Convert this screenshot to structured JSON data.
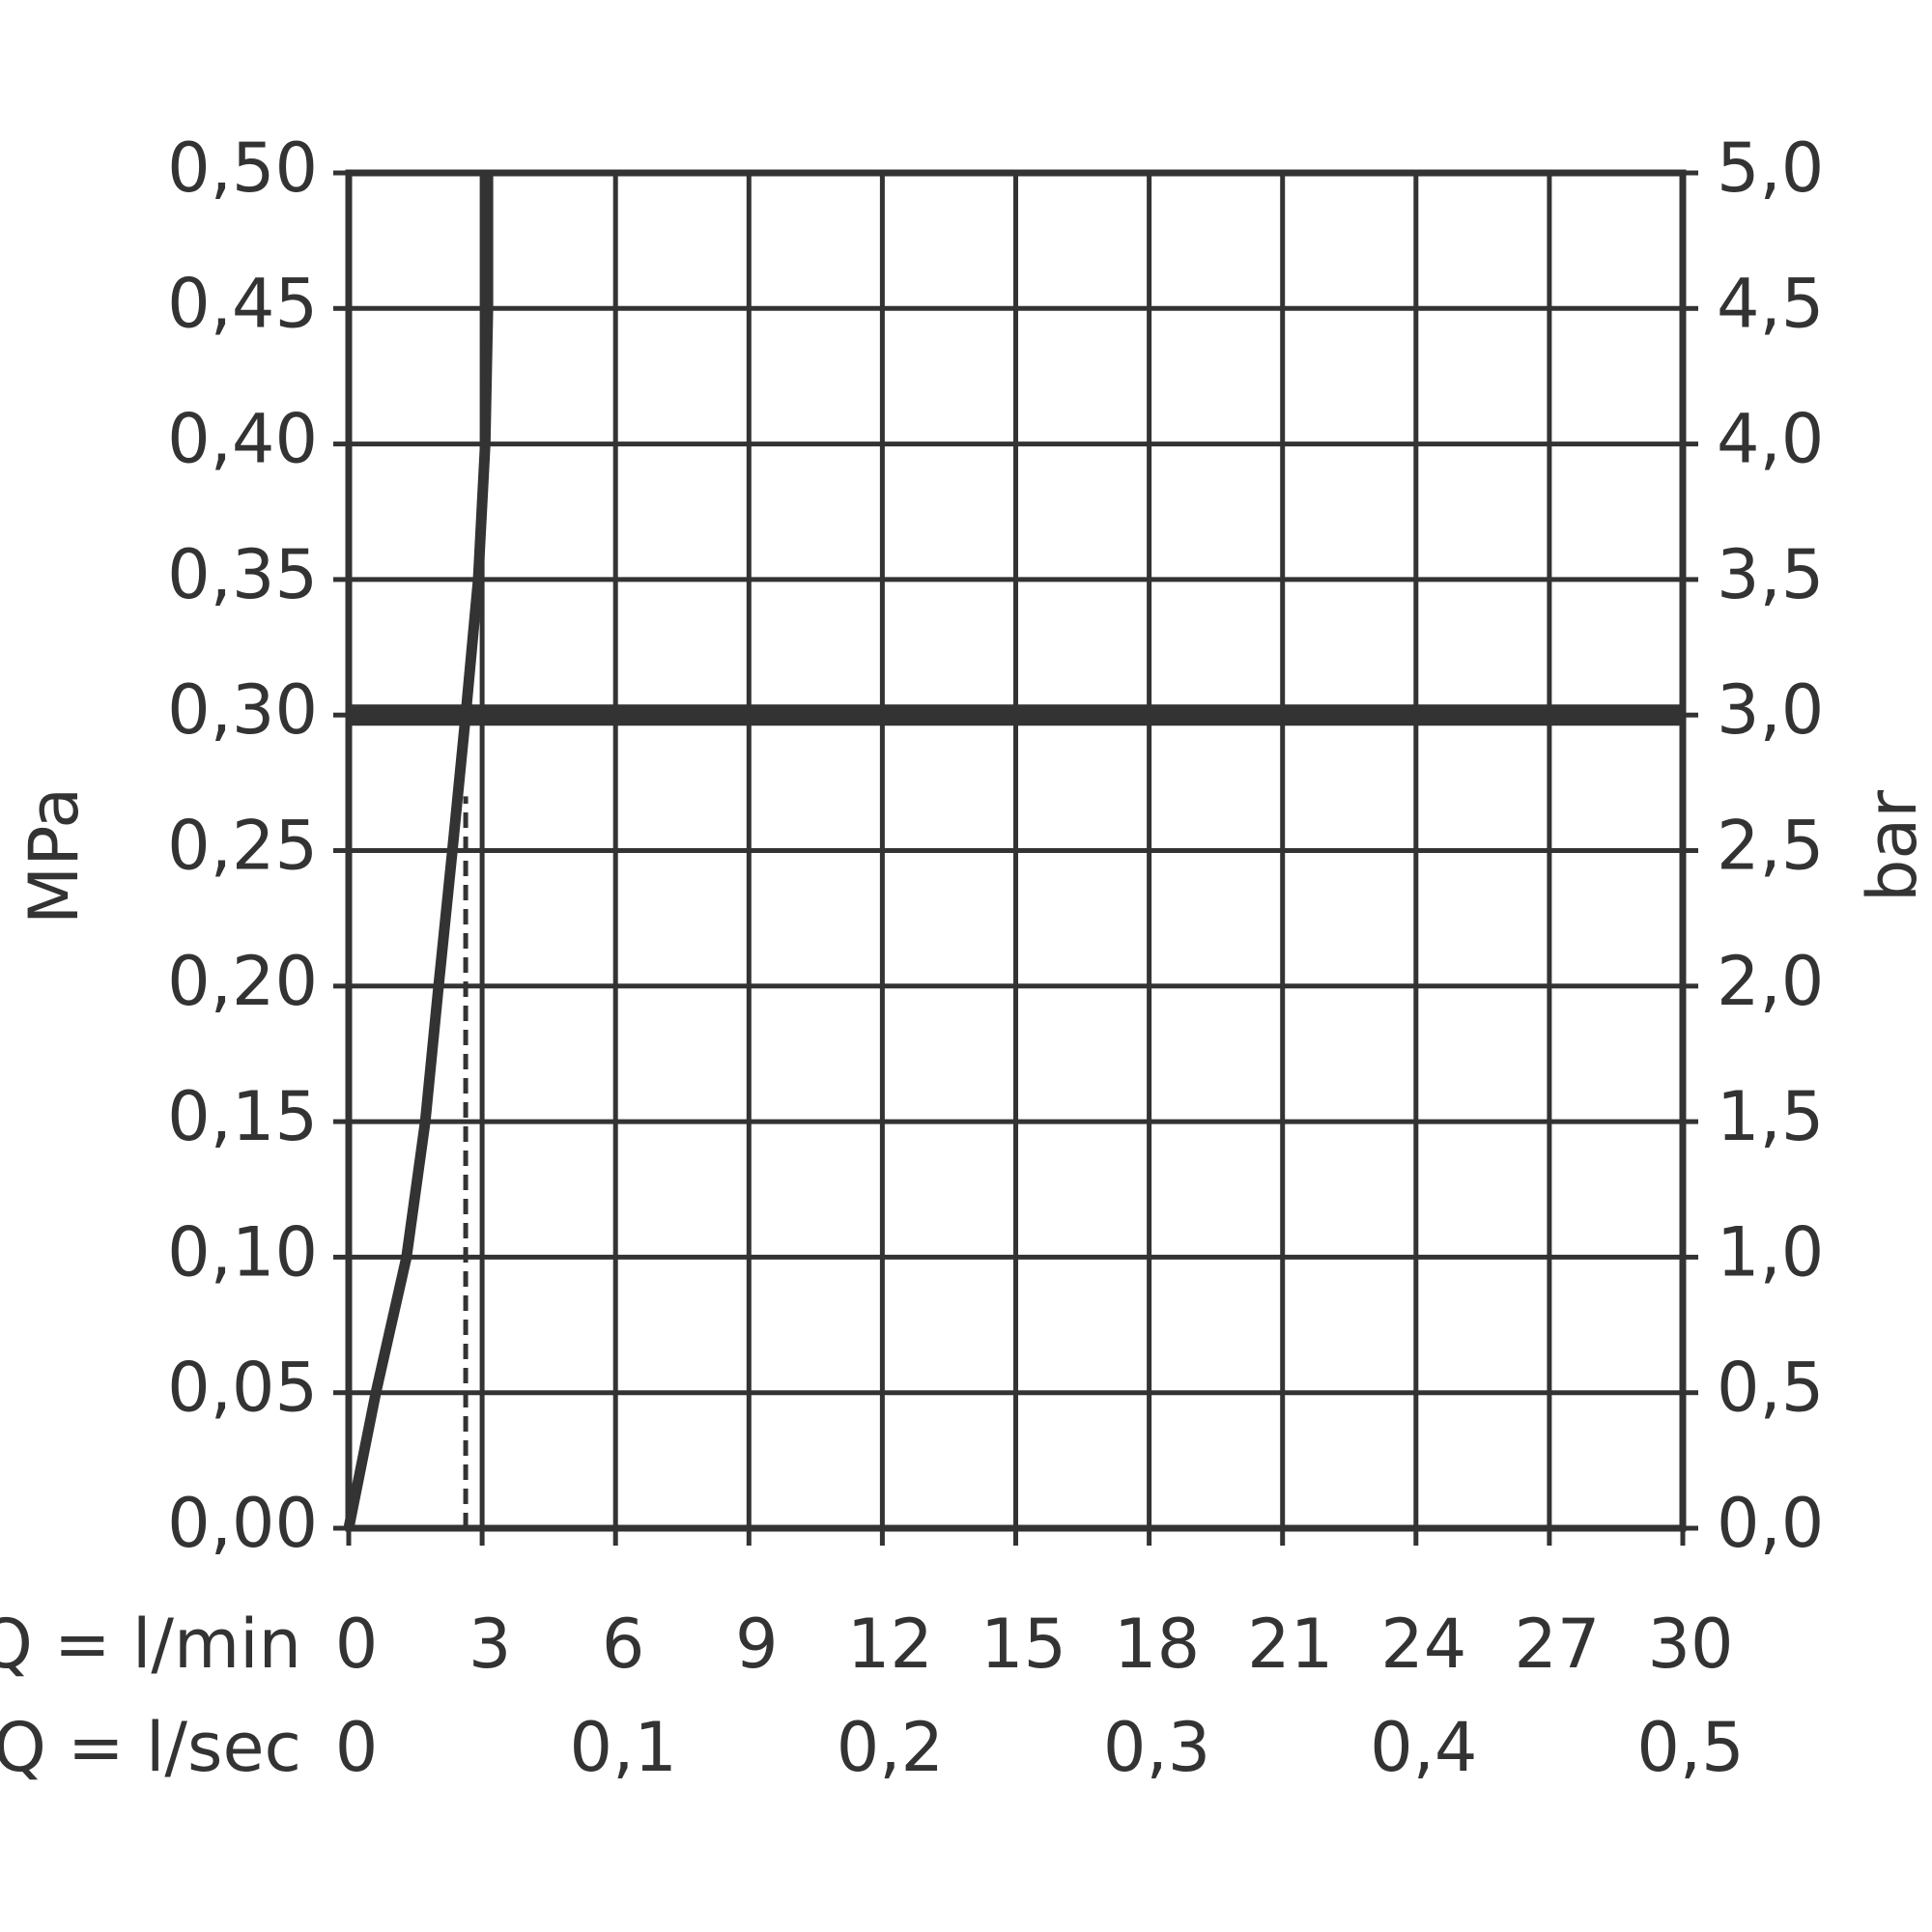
{
  "chart_data": {
    "type": "line",
    "xlabel": "Q = l/min",
    "x2label": "Q = l/sec",
    "ylabel": "MPa",
    "y2label": "bar",
    "x": [
      0,
      0.61,
      1.3,
      1.72,
      2.02,
      2.33,
      2.63,
      2.91,
      3.07,
      3.13,
      3.13
    ],
    "series": [
      {
        "color": "#333333",
        "values": [
          0,
          0.05,
          0.1,
          0.15,
          0.2,
          0.25,
          0.3,
          0.35,
          0.4,
          0.45,
          0.5
        ]
      }
    ],
    "hline_y": 0.3,
    "vline_x": 2.63,
    "xlim": [
      0,
      30
    ],
    "xticks": [
      0,
      3,
      6,
      9,
      12,
      15,
      18,
      21,
      24,
      27,
      30
    ],
    "x2lim": [
      0,
      0.5
    ],
    "x2ticks": [
      0,
      {
        "value": 0.1,
        "label": "0,1"
      },
      {
        "value": 0.2,
        "label": "0,2"
      },
      {
        "value": 0.3,
        "label": "0,3"
      },
      {
        "value": 0.4,
        "label": "0,4"
      },
      {
        "value": 0.5,
        "label": "0,5"
      }
    ],
    "ylim": [
      0,
      0.5
    ],
    "yticks": [
      {
        "value": 0,
        "label": "0,00"
      },
      {
        "value": 0.05,
        "label": "0,05"
      },
      {
        "value": 0.1,
        "label": "0,10"
      },
      {
        "value": 0.15,
        "label": "0,15"
      },
      {
        "value": 0.2,
        "label": "0,20"
      },
      {
        "value": 0.25,
        "label": "0,25"
      },
      {
        "value": 0.3,
        "label": "0,30"
      },
      {
        "value": 0.35,
        "label": "0,35"
      },
      {
        "value": 0.4,
        "label": "0,40"
      },
      {
        "value": 0.45,
        "label": "0,45"
      },
      {
        "value": 0.5,
        "label": "0,50"
      }
    ],
    "y2lim": [
      0,
      5
    ],
    "y2ticks": [
      {
        "value": 0,
        "label": "0,0"
      },
      {
        "value": 0.5,
        "label": "0,5"
      },
      {
        "value": 1,
        "label": "1,0"
      },
      {
        "value": 1.5,
        "label": "1,5"
      },
      {
        "value": 2,
        "label": "2,0"
      },
      {
        "value": 2.5,
        "label": "2,5"
      },
      {
        "value": 3,
        "label": "3,0"
      },
      {
        "value": 3.5,
        "label": "3,5"
      },
      {
        "value": 4,
        "label": "4,0"
      },
      {
        "value": 4.5,
        "label": "4,5"
      },
      {
        "value": 5,
        "label": "5,0"
      }
    ],
    "grid": true
  }
}
